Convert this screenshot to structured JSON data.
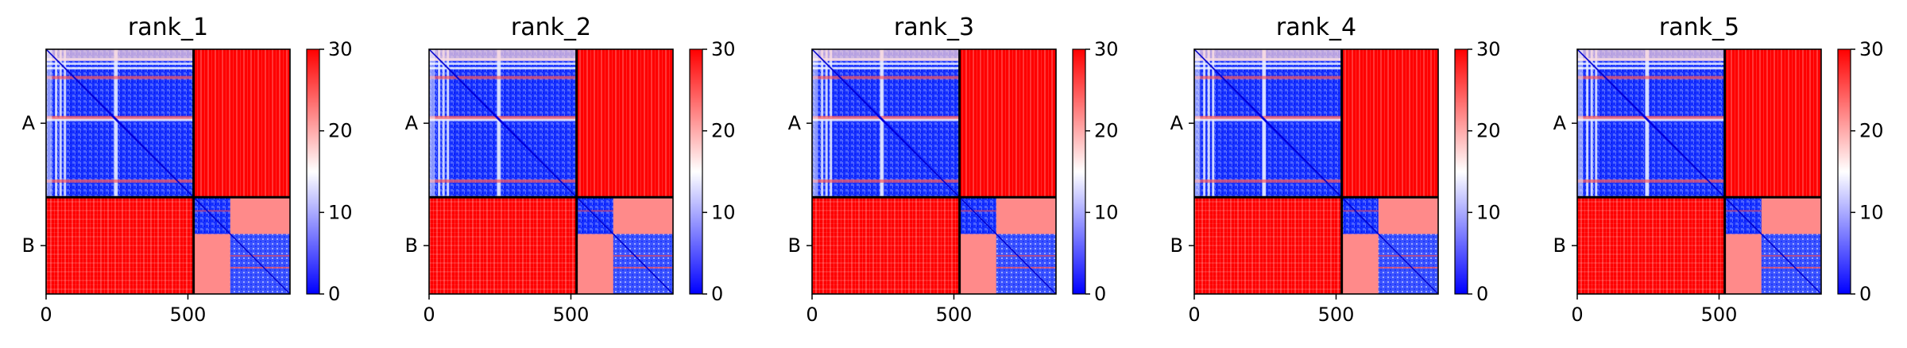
{
  "chart_data": [
    {
      "type": "heatmap",
      "title": "rank_1",
      "x_ticks": [
        "0",
        "500"
      ],
      "y_ticks": [
        "A",
        "B"
      ],
      "colorbar_ticks": [
        "0",
        "10",
        "20",
        "30"
      ],
      "value_range": [
        0,
        30
      ],
      "x_range": [
        0,
        860
      ],
      "chain_split": 520,
      "colormap": [
        "#0000ff",
        "#ffffff",
        "#ff0000"
      ]
    },
    {
      "type": "heatmap",
      "title": "rank_2",
      "x_ticks": [
        "0",
        "500"
      ],
      "y_ticks": [
        "A",
        "B"
      ],
      "colorbar_ticks": [
        "0",
        "10",
        "20",
        "30"
      ],
      "value_range": [
        0,
        30
      ],
      "x_range": [
        0,
        860
      ],
      "chain_split": 520,
      "colormap": [
        "#0000ff",
        "#ffffff",
        "#ff0000"
      ]
    },
    {
      "type": "heatmap",
      "title": "rank_3",
      "x_ticks": [
        "0",
        "500"
      ],
      "y_ticks": [
        "A",
        "B"
      ],
      "colorbar_ticks": [
        "0",
        "10",
        "20",
        "30"
      ],
      "value_range": [
        0,
        30
      ],
      "x_range": [
        0,
        860
      ],
      "chain_split": 520,
      "colormap": [
        "#0000ff",
        "#ffffff",
        "#ff0000"
      ]
    },
    {
      "type": "heatmap",
      "title": "rank_4",
      "x_ticks": [
        "0",
        "500"
      ],
      "y_ticks": [
        "A",
        "B"
      ],
      "colorbar_ticks": [
        "0",
        "10",
        "20",
        "30"
      ],
      "value_range": [
        0,
        30
      ],
      "x_range": [
        0,
        860
      ],
      "chain_split": 520,
      "colormap": [
        "#0000ff",
        "#ffffff",
        "#ff0000"
      ]
    },
    {
      "type": "heatmap",
      "title": "rank_5",
      "x_ticks": [
        "0",
        "500"
      ],
      "y_ticks": [
        "A",
        "B"
      ],
      "colorbar_ticks": [
        "0",
        "10",
        "20",
        "30"
      ],
      "value_range": [
        0,
        30
      ],
      "x_range": [
        0,
        860
      ],
      "chain_split": 520,
      "colormap": [
        "#0000ff",
        "#ffffff",
        "#ff0000"
      ]
    }
  ]
}
